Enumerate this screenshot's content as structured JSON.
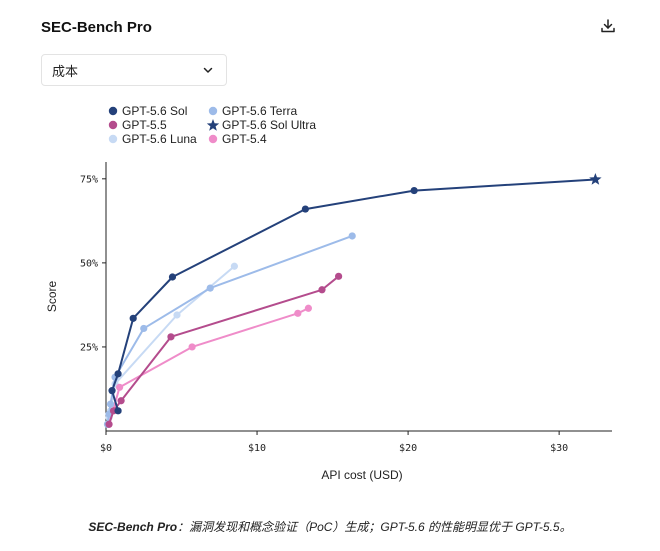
{
  "header": {
    "title": "SEC-Bench Pro",
    "download_icon": "download-icon"
  },
  "dropdown": {
    "selected": "成本",
    "icon": "chevron-down-icon"
  },
  "caption": {
    "bold": "SEC-Bench Pro",
    "text": "：漏洞发现和概念验证（PoC）生成；GPT-5.6 的性能明显优于 GPT-5.5。"
  },
  "chart_data": {
    "type": "line",
    "xlabel": "API cost (USD)",
    "ylabel": "Score",
    "xlim": [
      0,
      33.5
    ],
    "ylim": [
      0,
      0.8
    ],
    "x_ticks": [
      {
        "v": 0,
        "label": "$0"
      },
      {
        "v": 10,
        "label": "$10"
      },
      {
        "v": 20,
        "label": "$20"
      },
      {
        "v": 30,
        "label": "$30"
      }
    ],
    "y_ticks": [
      {
        "v": 0.25,
        "label": "25%"
      },
      {
        "v": 0.5,
        "label": "50%"
      },
      {
        "v": 0.75,
        "label": "75%"
      }
    ],
    "grid": false,
    "legend_position": "top-left",
    "series": [
      {
        "name": "GPT-5.6 Sol",
        "color": "#24417a",
        "marker": "circle",
        "points": [
          [
            0.8,
            0.06
          ],
          [
            0.4,
            0.12
          ],
          [
            0.8,
            0.17
          ],
          [
            1.8,
            0.335
          ],
          [
            4.4,
            0.458
          ],
          [
            13.2,
            0.66
          ],
          [
            20.4,
            0.715
          ],
          [
            32.4,
            0.748
          ]
        ],
        "star_last": true
      },
      {
        "name": "GPT-5.6 Terra",
        "color": "#9dbbe9",
        "marker": "circle",
        "points": [
          [
            0.1,
            0.02
          ],
          [
            0.2,
            0.05
          ],
          [
            0.3,
            0.08
          ],
          [
            0.6,
            0.16
          ],
          [
            2.5,
            0.305
          ],
          [
            6.9,
            0.425
          ],
          [
            16.3,
            0.58
          ]
        ]
      },
      {
        "name": "GPT-5.5",
        "color": "#b44c8d",
        "marker": "circle",
        "points": [
          [
            0.2,
            0.02
          ],
          [
            0.5,
            0.06
          ],
          [
            1.0,
            0.09
          ],
          [
            4.3,
            0.28
          ],
          [
            14.3,
            0.42
          ],
          [
            15.4,
            0.46
          ]
        ]
      },
      {
        "name": "GPT-5.6 Sol Ultra",
        "color": "#24417a",
        "marker": "star",
        "points": []
      },
      {
        "name": "GPT-5.6 Luna",
        "color": "#c7daf4",
        "marker": "circle",
        "points": [
          [
            0.1,
            0.02
          ],
          [
            0.2,
            0.04
          ],
          [
            0.3,
            0.06
          ],
          [
            0.6,
            0.14
          ],
          [
            4.7,
            0.345
          ],
          [
            8.5,
            0.49
          ]
        ]
      },
      {
        "name": "GPT-5.4",
        "color": "#ef8cc9",
        "marker": "circle",
        "points": [
          [
            0.2,
            0.02
          ],
          [
            0.9,
            0.13
          ],
          [
            5.7,
            0.25
          ],
          [
            12.7,
            0.35
          ],
          [
            13.4,
            0.365
          ]
        ]
      }
    ]
  }
}
